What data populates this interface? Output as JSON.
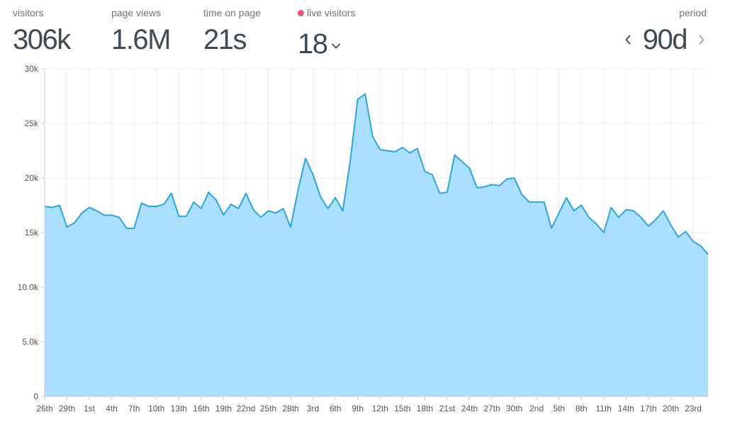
{
  "stats": {
    "visitors": {
      "label": "visitors",
      "value": "306k"
    },
    "page_views": {
      "label": "page views",
      "value": "1.6M"
    },
    "time_on_page": {
      "label": "time on page",
      "value": "21s"
    },
    "live_visitors": {
      "label": "live visitors",
      "value": "18",
      "dot_color": "#f2536b",
      "dropdown_icon": "chevron-down-icon"
    }
  },
  "period": {
    "label": "period",
    "value": "90d",
    "prev_icon": "chevron-left-icon",
    "next_icon": "chevron-right-icon"
  },
  "colors": {
    "line": "#2aa6e0",
    "fill": "#aadfff",
    "grid": "#ececec",
    "axis": "#cccccc",
    "text_main": "#3f4a55",
    "text_muted": "#737373"
  },
  "chart_data": {
    "type": "area",
    "title": "",
    "xlabel": "",
    "ylabel": "",
    "ylim": [
      0,
      30000
    ],
    "grid": true,
    "legend": "none",
    "y_ticks": [
      {
        "value": 0,
        "label": "0"
      },
      {
        "value": 5000,
        "label": "5.0k"
      },
      {
        "value": 10000,
        "label": "10.0k"
      },
      {
        "value": 15000,
        "label": "15k"
      },
      {
        "value": 20000,
        "label": "20k"
      },
      {
        "value": 25000,
        "label": "25k"
      },
      {
        "value": 30000,
        "label": "30k"
      }
    ],
    "x_tick_labels": [
      "26th",
      "29th",
      "1st",
      "4th",
      "7th",
      "10th",
      "13th",
      "16th",
      "19th",
      "22nd",
      "25th",
      "28th",
      "3rd",
      "6th",
      "9th",
      "12th",
      "15th",
      "18th",
      "21st",
      "24th",
      "27th",
      "30th",
      "2nd",
      "5th",
      "8th",
      "11th",
      "14th",
      "17th",
      "20th",
      "23rd"
    ],
    "series": [
      {
        "values": [
          17400,
          17300,
          17500,
          15500,
          15900,
          16800,
          17300,
          17000,
          16600,
          16600,
          16400,
          15400,
          15400,
          17700,
          17400,
          17400,
          17600,
          18600,
          16500,
          16500,
          17800,
          17200,
          18700,
          18000,
          16600,
          17600,
          17200,
          18600,
          17100,
          16400,
          17000,
          16800,
          17200,
          15500,
          18900,
          21800,
          20300,
          18300,
          17200,
          18200,
          17000,
          21600,
          27200,
          27700,
          23800,
          22600,
          22500,
          22400,
          22800,
          22300,
          22700,
          20600,
          20300,
          18600,
          18700,
          22100,
          21500,
          20900,
          19100,
          19200,
          19400,
          19300,
          19900,
          20000,
          18500,
          17800,
          17800,
          17800,
          15400,
          16800,
          18200,
          17000,
          17500,
          16400,
          15800,
          15000,
          17300,
          16400,
          17100,
          17000,
          16400,
          15600,
          16200,
          17000,
          15700,
          14600,
          15100,
          14200,
          13800,
          13000
        ]
      }
    ]
  }
}
